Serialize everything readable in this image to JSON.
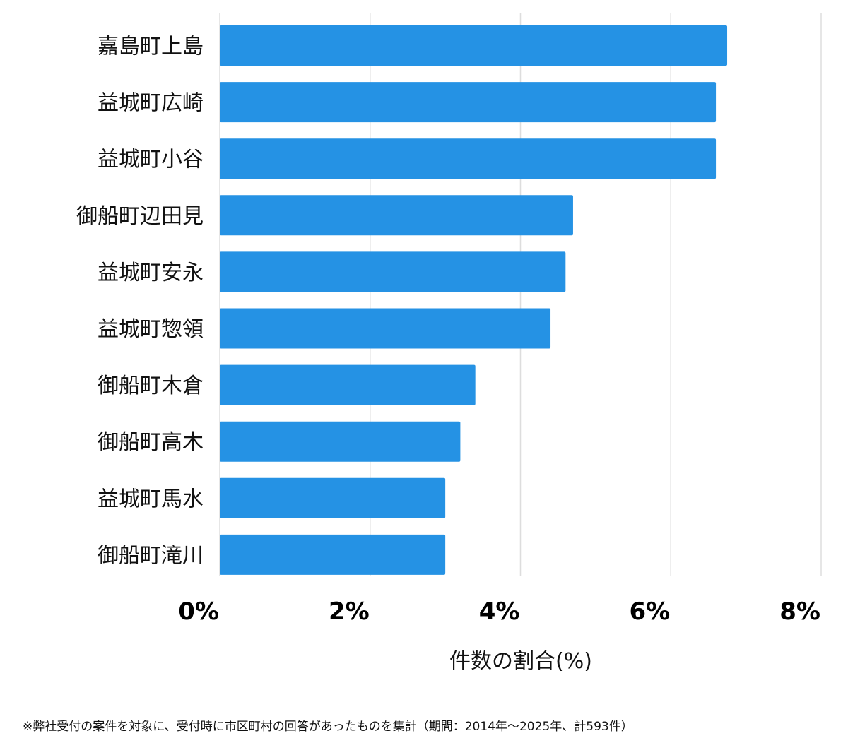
{
  "chart_data": {
    "type": "bar",
    "orientation": "horizontal",
    "categories": [
      "嘉島町上島",
      "益城町広崎",
      "益城町小谷",
      "御船町辺田見",
      "益城町安永",
      "益城町惣領",
      "御船町木倉",
      "御船町高木",
      "益城町馬水",
      "御船町滝川"
    ],
    "values": [
      6.75,
      6.6,
      6.6,
      4.7,
      4.6,
      4.4,
      3.4,
      3.2,
      3.0,
      3.0
    ],
    "xlim": [
      0,
      8
    ],
    "x_ticks": [
      0,
      2,
      4,
      6,
      8
    ],
    "x_tick_labels": [
      "0%",
      "2%",
      "4%",
      "6%",
      "8%"
    ],
    "xlabel": "件数の割合(%)",
    "ylabel": "",
    "title": "",
    "grid": true,
    "bar_color": "#2592e4",
    "grid_color": "#dddddd"
  },
  "footnote": "※弊社受付の案件を対象に、受付時に市区町村の回答があったものを集計（期間：2014年～2025年、計593件）"
}
